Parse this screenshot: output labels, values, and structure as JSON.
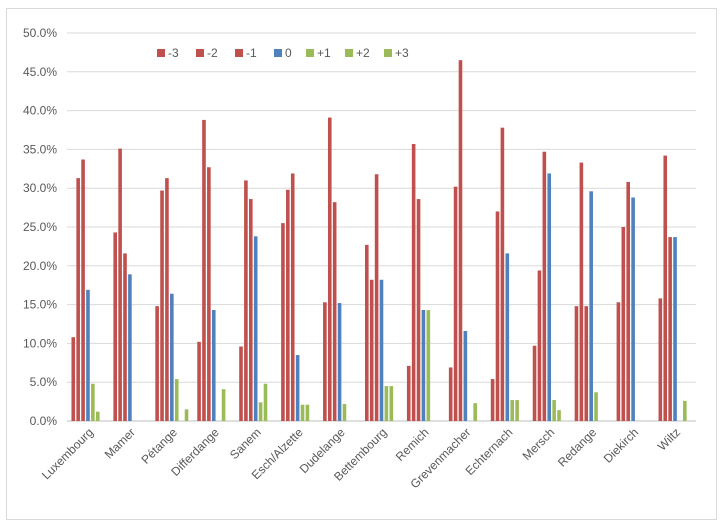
{
  "chart_data": {
    "type": "bar",
    "categories": [
      "Luxembourg",
      "Mamer",
      "Pétange",
      "Differdange",
      "Sanem",
      "Esch/Alzette",
      "Dudelange",
      "Bettembourg",
      "Remich",
      "Grevenmacher",
      "Echternach",
      "Mersch",
      "Redange",
      "Diekirch",
      "Wiltz"
    ],
    "ylim": [
      0,
      50
    ],
    "y_ticks": [
      "0.0%",
      "5.0%",
      "10.0%",
      "15.0%",
      "20.0%",
      "25.0%",
      "30.0%",
      "35.0%",
      "40.0%",
      "45.0%",
      "50.0%"
    ],
    "y_tick_values": [
      0,
      5,
      10,
      15,
      20,
      25,
      30,
      35,
      40,
      45,
      50
    ],
    "grid": true,
    "legend_position": "top-left",
    "series": [
      {
        "name": "-3",
        "color": "#c0504d",
        "values": [
          10.8,
          24.3,
          14.8,
          10.2,
          9.6,
          25.5,
          15.3,
          22.7,
          7.1,
          6.9,
          5.4,
          9.7,
          14.8,
          15.3,
          15.8
        ]
      },
      {
        "name": "-2",
        "color": "#c0504d",
        "values": [
          31.3,
          35.1,
          29.7,
          38.8,
          31.0,
          29.8,
          39.1,
          18.2,
          35.7,
          30.2,
          27.0,
          19.4,
          33.3,
          25.0,
          34.2
        ]
      },
      {
        "name": "-1",
        "color": "#c0504d",
        "values": [
          33.7,
          21.6,
          31.3,
          32.7,
          28.6,
          31.9,
          28.2,
          31.8,
          28.6,
          46.5,
          37.8,
          34.7,
          14.8,
          30.8,
          23.7
        ]
      },
      {
        "name": "0",
        "color": "#4f81bd",
        "values": [
          16.9,
          18.9,
          16.4,
          14.3,
          23.8,
          8.5,
          15.2,
          18.2,
          14.3,
          11.6,
          21.6,
          31.9,
          29.6,
          28.8,
          23.7
        ]
      },
      {
        "name": "+1",
        "color": "#9bbb59",
        "values": [
          4.8,
          0,
          5.4,
          0,
          2.4,
          2.1,
          2.2,
          4.5,
          14.3,
          0,
          2.7,
          2.7,
          3.7,
          0,
          0
        ]
      },
      {
        "name": "+2",
        "color": "#9bbb59",
        "values": [
          1.2,
          0,
          0,
          4.1,
          4.8,
          2.1,
          0,
          4.5,
          0,
          2.3,
          2.7,
          1.4,
          0,
          0,
          2.6
        ]
      },
      {
        "name": "+3",
        "color": "#9bbb59",
        "values": [
          0,
          0,
          1.5,
          0,
          0,
          0,
          0,
          0,
          0,
          0,
          0,
          0,
          0,
          0,
          0
        ]
      }
    ]
  }
}
